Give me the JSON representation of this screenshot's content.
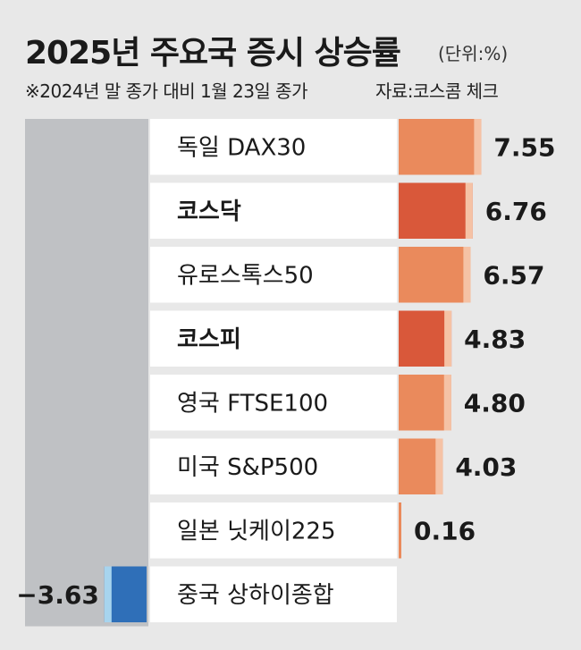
{
  "title": "2025년 주요국 증시 상승률",
  "unit": "(단위:%)",
  "note": "※2024년 말 종가 대비 1월 23일 종가",
  "source": "자료:코스콤 체크",
  "colors": {
    "bar": "#ea8a5c",
    "bar_highlight": "#d9583a",
    "bar_side": "#f5c2a5",
    "bar_negative": "#2f6fb8",
    "bar_negative_side": "#a7d4ee",
    "label_box": "#ffffff",
    "negative_panel": "#bfc1c4",
    "background": "#e8e8e8"
  },
  "chart_data": {
    "type": "bar",
    "orientation": "horizontal",
    "categories": [
      "독일 DAX30",
      "코스닥",
      "유로스톡스50",
      "코스피",
      "영국 FTSE100",
      "미국 S&P500",
      "일본 닛케이225",
      "중국 상하이종합"
    ],
    "values": [
      7.55,
      6.76,
      6.57,
      4.83,
      4.8,
      4.03,
      0.16,
      -3.63
    ],
    "value_labels": [
      "7.55",
      "6.76",
      "6.57",
      "4.83",
      "4.80",
      "4.03",
      "0.16",
      "−3.63"
    ],
    "highlight": [
      false,
      true,
      false,
      true,
      false,
      false,
      false,
      false
    ],
    "title": "2025년 주요국 증시 상승률",
    "xlabel": "",
    "ylabel": ""
  }
}
